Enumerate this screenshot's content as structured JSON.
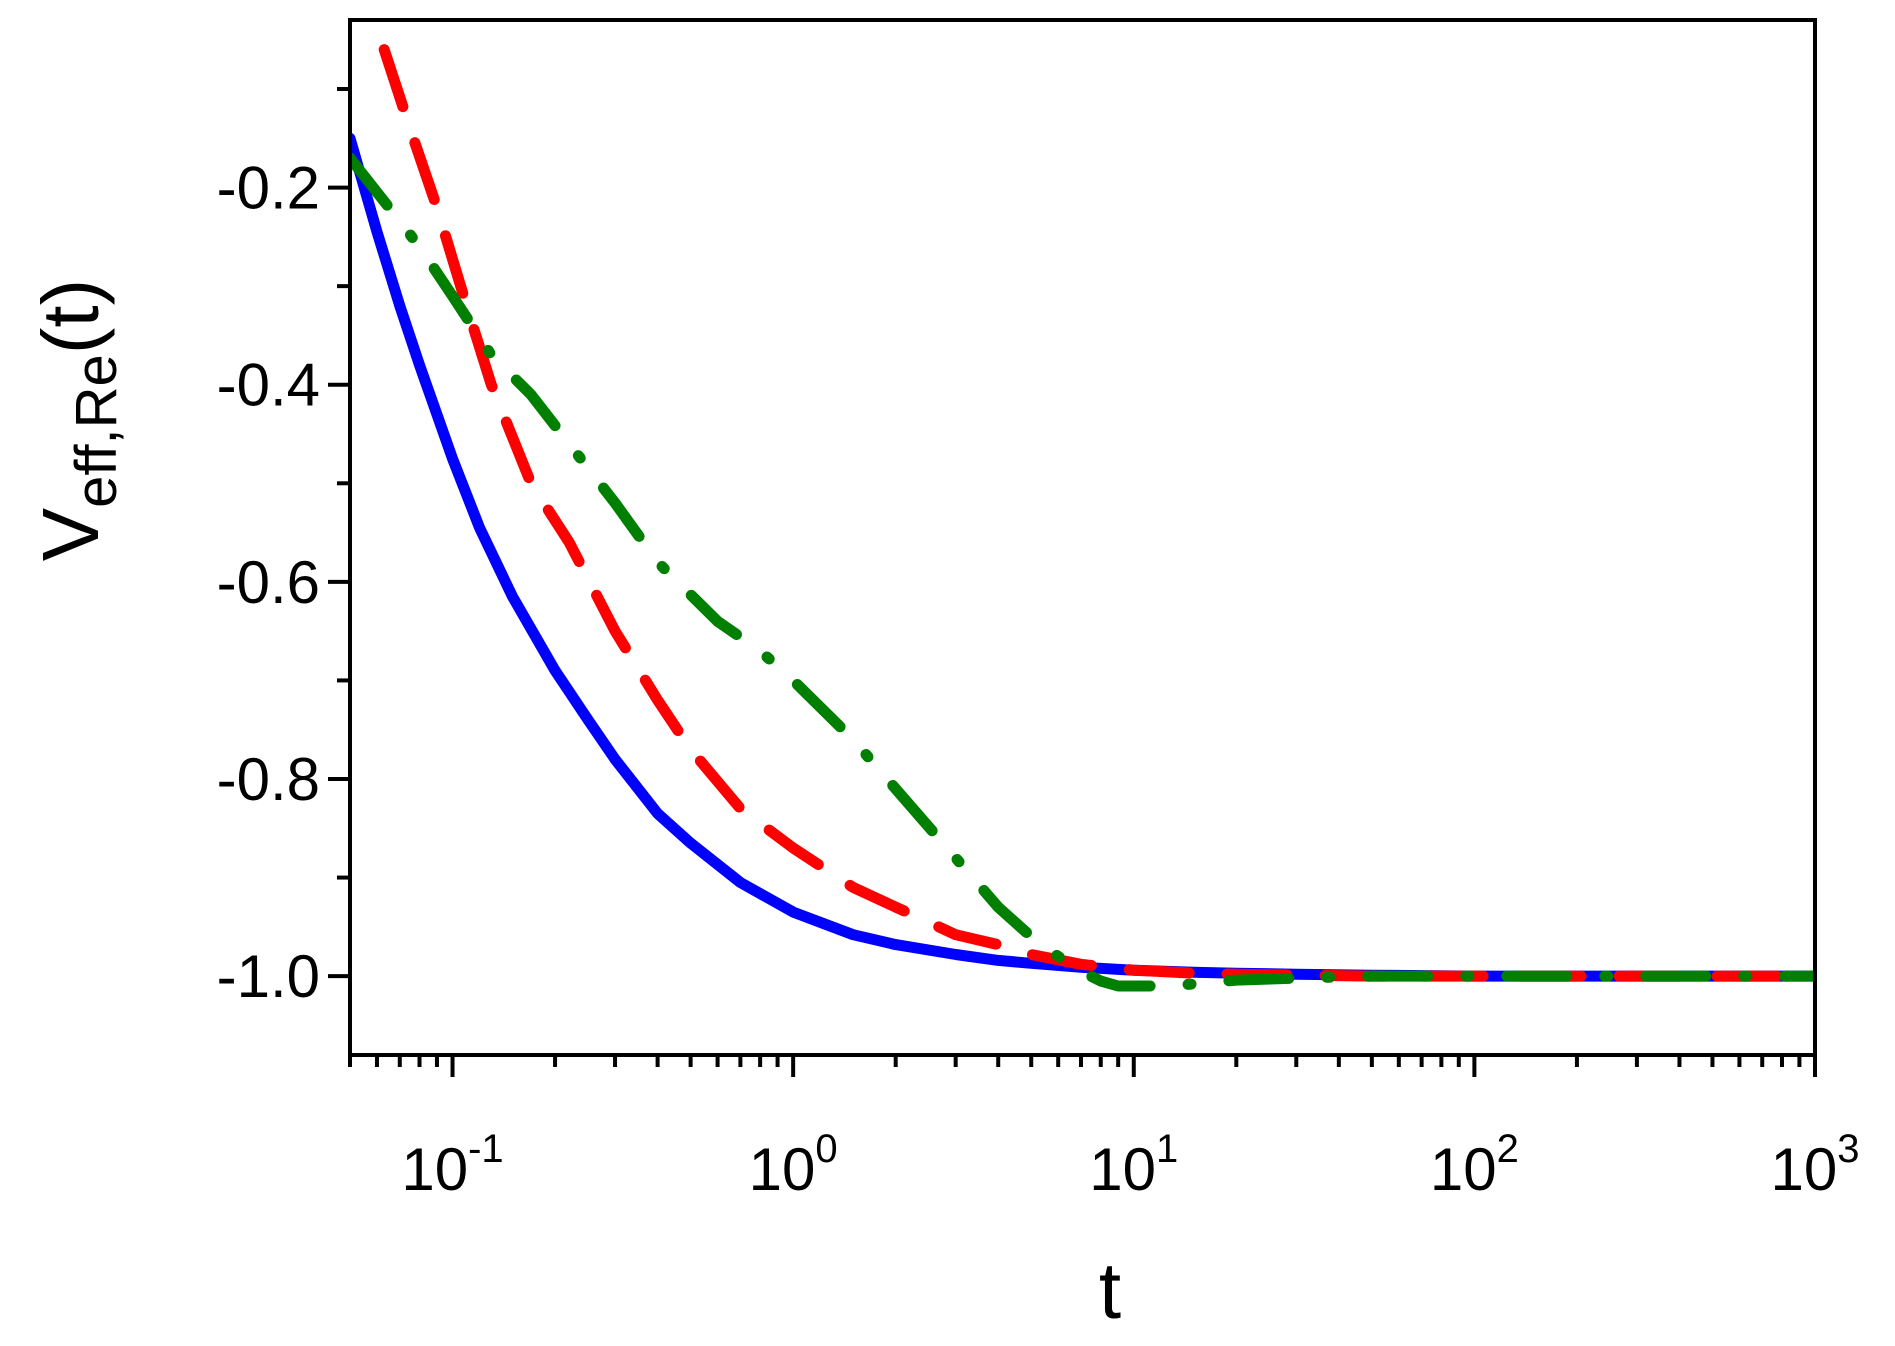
{
  "chart_data": {
    "type": "line",
    "xlabel": "t",
    "ylabel_main": "V",
    "ylabel_sub": "eff,Re",
    "ylabel_suffix": "(t)",
    "x_scale": "log",
    "xlim": [
      0.05,
      1000
    ],
    "ylim": [
      -1.08,
      -0.03
    ],
    "x_ticks": [
      {
        "value": 0.1,
        "base": "10",
        "exp": "-1"
      },
      {
        "value": 1,
        "base": "10",
        "exp": "0"
      },
      {
        "value": 10,
        "base": "10",
        "exp": "1"
      },
      {
        "value": 100,
        "base": "10",
        "exp": "2"
      },
      {
        "value": 1000,
        "base": "10",
        "exp": "3"
      }
    ],
    "y_ticks": [
      {
        "value": -0.2,
        "label": "-0.2"
      },
      {
        "value": -0.4,
        "label": "-0.4"
      },
      {
        "value": -0.6,
        "label": "-0.6"
      },
      {
        "value": -0.8,
        "label": "-0.8"
      },
      {
        "value": -1.0,
        "label": "-1.0"
      }
    ],
    "grid": false,
    "legend": "none",
    "series": [
      {
        "color": "#0000ff",
        "style": "solid",
        "x": [
          0.05,
          0.06,
          0.07,
          0.08,
          0.1,
          0.12,
          0.15,
          0.2,
          0.25,
          0.3,
          0.4,
          0.5,
          0.7,
          1.0,
          1.5,
          2,
          3,
          4,
          5,
          7,
          10,
          15,
          20,
          30,
          50,
          100,
          200,
          500,
          1000
        ],
        "y": [
          -0.15,
          -0.245,
          -0.32,
          -0.38,
          -0.475,
          -0.545,
          -0.615,
          -0.69,
          -0.74,
          -0.78,
          -0.835,
          -0.865,
          -0.905,
          -0.935,
          -0.958,
          -0.968,
          -0.978,
          -0.984,
          -0.987,
          -0.991,
          -0.994,
          -0.996,
          -0.997,
          -0.998,
          -0.999,
          -1.0,
          -1.0,
          -1.0,
          -1.0
        ]
      },
      {
        "color": "#ff0000",
        "style": "dashed",
        "x": [
          0.063,
          0.075,
          0.09,
          0.11,
          0.13,
          0.17,
          0.22,
          0.3,
          0.4,
          0.5,
          0.7,
          1.0,
          1.5,
          2,
          3,
          4,
          5,
          7,
          10,
          15,
          20,
          30,
          50,
          100,
          200,
          500,
          1000
        ],
        "y": [
          -0.06,
          -0.14,
          -0.22,
          -0.32,
          -0.4,
          -0.5,
          -0.56,
          -0.65,
          -0.72,
          -0.77,
          -0.83,
          -0.87,
          -0.91,
          -0.93,
          -0.958,
          -0.968,
          -0.978,
          -0.988,
          -0.994,
          -0.997,
          -0.998,
          -0.999,
          -1.0,
          -1.0,
          -1.0,
          -1.0,
          -1.0
        ]
      },
      {
        "color": "#007f00",
        "style": "dash-dot",
        "x": [
          0.05,
          0.065,
          0.08,
          0.1,
          0.13,
          0.17,
          0.22,
          0.3,
          0.4,
          0.6,
          0.8,
          1.0,
          1.5,
          2,
          3,
          4,
          5,
          6,
          7,
          8,
          9,
          10,
          12,
          15,
          20,
          30,
          50,
          100,
          200,
          500,
          1000
        ],
        "y": [
          -0.17,
          -0.22,
          -0.26,
          -0.31,
          -0.37,
          -0.41,
          -0.46,
          -0.52,
          -0.58,
          -0.64,
          -0.67,
          -0.7,
          -0.76,
          -0.81,
          -0.88,
          -0.93,
          -0.96,
          -0.98,
          -0.995,
          -1.005,
          -1.01,
          -1.01,
          -1.01,
          -1.008,
          -1.004,
          -1.002,
          -1.0,
          -1.0,
          -1.0,
          -1.0,
          -1.0
        ]
      }
    ]
  }
}
